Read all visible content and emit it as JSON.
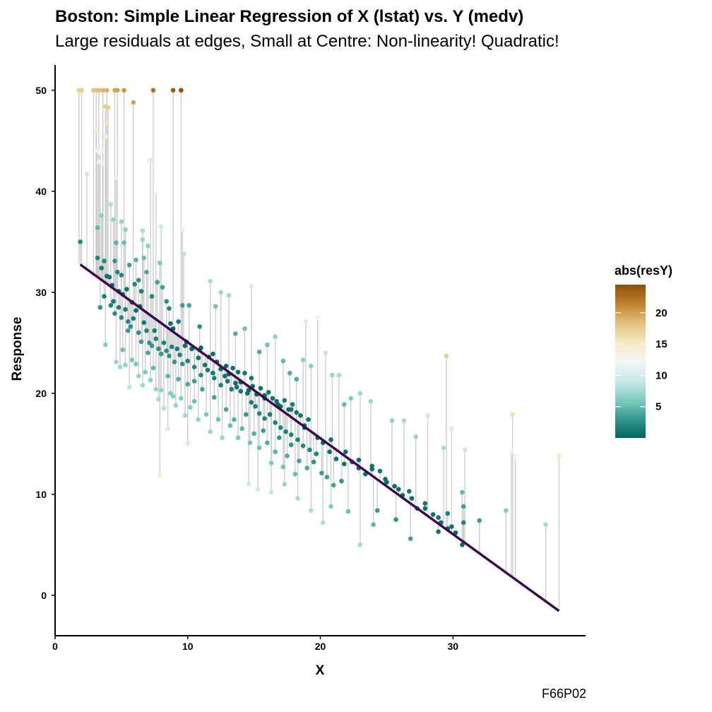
{
  "chart_data": {
    "type": "scatter",
    "title": "Boston: Simple Linear Regression of X (lstat) vs. Y (medv)",
    "subtitle": "Large residuals at edges, Small at Centre: Non-linearity! Quadratic!",
    "caption": "F66P02",
    "xlabel": "X",
    "ylabel": "Response",
    "xlim": [
      0,
      40
    ],
    "ylim": [
      -4,
      52.5
    ],
    "x_ticks": [
      0,
      10,
      20,
      30
    ],
    "y_ticks": [
      0,
      10,
      20,
      30,
      40,
      50
    ],
    "grid": false,
    "regression_line": {
      "intercept": 34.55,
      "slope": -0.95,
      "x_range": [
        1.9,
        38.0
      ],
      "color": "#3d0a4f"
    },
    "residual_segments_color": "#bdbdbd",
    "legend": {
      "title": "abs(resY)",
      "position": "right",
      "ticks": [
        5,
        10,
        15,
        20
      ],
      "range": [
        0.0,
        24.5
      ],
      "colors": [
        "#01665e",
        "#35978f",
        "#80cdc1",
        "#c7eae5",
        "#f5f5f5",
        "#f6e8c3",
        "#dfc27d",
        "#bf812d",
        "#8c510a"
      ]
    },
    "points": [
      [
        1.9,
        35.0
      ],
      [
        1.8,
        50.0
      ],
      [
        2.0,
        50.0
      ],
      [
        2.9,
        50.0
      ],
      [
        3.1,
        50.0
      ],
      [
        3.3,
        50.0
      ],
      [
        3.6,
        50.0
      ],
      [
        3.9,
        50.0
      ],
      [
        4.5,
        50.0
      ],
      [
        4.7,
        50.0
      ],
      [
        5.2,
        50.0
      ],
      [
        7.4,
        50.0
      ],
      [
        8.9,
        50.0
      ],
      [
        9.5,
        50.0
      ],
      [
        3.8,
        48.4
      ],
      [
        4.0,
        48.3
      ],
      [
        5.9,
        48.8
      ],
      [
        3.1,
        46.0
      ],
      [
        3.2,
        44.0
      ],
      [
        3.4,
        43.8
      ],
      [
        3.6,
        44.0
      ],
      [
        3.8,
        45.4
      ],
      [
        3.9,
        46.7
      ],
      [
        3.3,
        42.9
      ],
      [
        3.6,
        42.8
      ],
      [
        7.2,
        43.1
      ],
      [
        2.4,
        41.7
      ],
      [
        4.6,
        41.3
      ],
      [
        7.6,
        39.8
      ],
      [
        4.2,
        38.7
      ],
      [
        4.4,
        37.2
      ],
      [
        3.2,
        36.4
      ],
      [
        3.5,
        37.6
      ],
      [
        5.0,
        37.0
      ],
      [
        5.3,
        36.2
      ],
      [
        6.6,
        36.1
      ],
      [
        8.0,
        36.5
      ],
      [
        9.6,
        36.2
      ],
      [
        9.7,
        33.8
      ],
      [
        3.2,
        33.4
      ],
      [
        3.5,
        32.4
      ],
      [
        3.7,
        33.1
      ],
      [
        3.9,
        31.6
      ],
      [
        4.1,
        31.5
      ],
      [
        4.3,
        30.7
      ],
      [
        4.5,
        33.1
      ],
      [
        4.6,
        34.9
      ],
      [
        4.7,
        32.0
      ],
      [
        4.8,
        30.1
      ],
      [
        5.0,
        31.7
      ],
      [
        5.1,
        29.8
      ],
      [
        5.2,
        34.9
      ],
      [
        5.4,
        30.3
      ],
      [
        5.6,
        32.7
      ],
      [
        5.8,
        29.0
      ],
      [
        6.0,
        30.8
      ],
      [
        6.1,
        33.2
      ],
      [
        6.3,
        31.2
      ],
      [
        6.5,
        30.1
      ],
      [
        6.6,
        35.2
      ],
      [
        6.7,
        33.4
      ],
      [
        6.9,
        32.0
      ],
      [
        7.0,
        34.6
      ],
      [
        7.3,
        29.6
      ],
      [
        7.7,
        31.0
      ],
      [
        7.9,
        32.9
      ],
      [
        8.1,
        30.5
      ],
      [
        8.4,
        29.1
      ],
      [
        8.6,
        28.4
      ],
      [
        8.9,
        26.4
      ],
      [
        9.3,
        27.1
      ],
      [
        9.6,
        28.7
      ],
      [
        10.1,
        28.7
      ],
      [
        10.9,
        26.6
      ],
      [
        3.4,
        28.5
      ],
      [
        3.7,
        29.6
      ],
      [
        4.2,
        28.7
      ],
      [
        4.5,
        27.9
      ],
      [
        4.8,
        28.5
      ],
      [
        5.0,
        27.5
      ],
      [
        5.3,
        28.3
      ],
      [
        5.5,
        27.1
      ],
      [
        5.7,
        26.6
      ],
      [
        5.9,
        27.4
      ],
      [
        6.1,
        28.2
      ],
      [
        6.3,
        26.0
      ],
      [
        6.5,
        25.1
      ],
      [
        6.7,
        27.0
      ],
      [
        6.9,
        26.2
      ],
      [
        7.1,
        25.0
      ],
      [
        7.3,
        24.7
      ],
      [
        7.5,
        26.2
      ],
      [
        7.8,
        24.4
      ],
      [
        8.0,
        23.9
      ],
      [
        8.2,
        25.0
      ],
      [
        8.4,
        24.2
      ],
      [
        8.6,
        23.7
      ],
      [
        8.8,
        24.6
      ],
      [
        9.0,
        23.1
      ],
      [
        9.2,
        24.4
      ],
      [
        9.4,
        23.8
      ],
      [
        9.6,
        22.9
      ],
      [
        9.8,
        24.7
      ],
      [
        10.0,
        23.2
      ],
      [
        10.3,
        24.4
      ],
      [
        10.5,
        22.6
      ],
      [
        10.8,
        23.5
      ],
      [
        11.0,
        24.5
      ],
      [
        11.3,
        22.8
      ],
      [
        11.6,
        23.6
      ],
      [
        11.9,
        22.0
      ],
      [
        12.2,
        23.1
      ],
      [
        12.5,
        22.4
      ],
      [
        12.8,
        21.7
      ],
      [
        13.1,
        21.9
      ],
      [
        13.4,
        22.5
      ],
      [
        13.7,
        20.6
      ],
      [
        14.0,
        21.1
      ],
      [
        14.3,
        22.0
      ],
      [
        14.6,
        20.3
      ],
      [
        14.9,
        20.7
      ],
      [
        15.2,
        19.9
      ],
      [
        15.5,
        20.5
      ],
      [
        15.8,
        19.5
      ],
      [
        16.1,
        20.1
      ],
      [
        16.4,
        19.5
      ],
      [
        16.7,
        19.2
      ],
      [
        17.0,
        18.7
      ],
      [
        17.3,
        19.3
      ],
      [
        17.6,
        18.4
      ],
      [
        17.9,
        18.9
      ],
      [
        18.2,
        18.1
      ],
      [
        18.5,
        17.8
      ],
      [
        18.8,
        16.8
      ],
      [
        19.1,
        17.4
      ],
      [
        3.8,
        24.8
      ],
      [
        4.6,
        23.1
      ],
      [
        4.9,
        22.6
      ],
      [
        5.1,
        24.3
      ],
      [
        5.3,
        22.8
      ],
      [
        5.6,
        20.6
      ],
      [
        5.8,
        23.3
      ],
      [
        6.1,
        22.9
      ],
      [
        6.3,
        21.7
      ],
      [
        6.6,
        20.8
      ],
      [
        6.8,
        22.1
      ],
      [
        7.0,
        24.0
      ],
      [
        7.2,
        21.3
      ],
      [
        7.4,
        22.5
      ],
      [
        7.6,
        20.4
      ],
      [
        7.8,
        19.4
      ],
      [
        8.0,
        20.3
      ],
      [
        8.2,
        18.5
      ],
      [
        8.5,
        21.7
      ],
      [
        8.7,
        20.0
      ],
      [
        8.9,
        19.7
      ],
      [
        9.1,
        18.8
      ],
      [
        9.3,
        21.4
      ],
      [
        9.5,
        19.5
      ],
      [
        9.8,
        17.8
      ],
      [
        10.0,
        20.9
      ],
      [
        10.2,
        18.6
      ],
      [
        10.5,
        19.2
      ],
      [
        10.8,
        17.4
      ],
      [
        11.1,
        20.4
      ],
      [
        11.4,
        17.9
      ],
      [
        11.7,
        16.2
      ],
      [
        12.0,
        19.6
      ],
      [
        12.3,
        17.4
      ],
      [
        12.6,
        15.6
      ],
      [
        12.9,
        18.4
      ],
      [
        13.2,
        16.8
      ],
      [
        13.5,
        17.4
      ],
      [
        13.8,
        15.6
      ],
      [
        14.1,
        16.5
      ],
      [
        14.4,
        17.9
      ],
      [
        14.7,
        15.1
      ],
      [
        15.0,
        16.0
      ],
      [
        15.4,
        14.6
      ],
      [
        15.7,
        16.3
      ],
      [
        16.0,
        15.1
      ],
      [
        16.3,
        13.1
      ],
      [
        16.6,
        14.2
      ],
      [
        16.9,
        15.6
      ],
      [
        17.2,
        12.7
      ],
      [
        17.5,
        13.8
      ],
      [
        17.8,
        14.9
      ],
      [
        18.1,
        12.0
      ],
      [
        18.4,
        13.3
      ],
      [
        19.0,
        12.6
      ],
      [
        19.5,
        13.2
      ],
      [
        20.1,
        12.1
      ],
      [
        20.5,
        11.7
      ],
      [
        21.0,
        10.9
      ],
      [
        21.6,
        11.3
      ],
      [
        10.5,
        21.2
      ],
      [
        11.0,
        21.8
      ],
      [
        11.5,
        22.3
      ],
      [
        12.0,
        21.5
      ],
      [
        12.5,
        20.8
      ],
      [
        13.0,
        21.2
      ],
      [
        13.3,
        20.4
      ],
      [
        13.6,
        21.0
      ],
      [
        14.0,
        20.2
      ],
      [
        14.5,
        20.0
      ],
      [
        14.8,
        19.1
      ],
      [
        15.1,
        18.7
      ],
      [
        15.4,
        18.0
      ],
      [
        15.8,
        17.5
      ],
      [
        16.2,
        17.9
      ],
      [
        16.6,
        17.1
      ],
      [
        17.0,
        16.6
      ],
      [
        17.4,
        16.2
      ],
      [
        17.8,
        15.9
      ],
      [
        18.3,
        15.4
      ],
      [
        18.7,
        14.8
      ],
      [
        19.2,
        14.4
      ],
      [
        19.7,
        14.0
      ],
      [
        20.2,
        15.1
      ],
      [
        20.7,
        14.2
      ],
      [
        21.2,
        13.5
      ],
      [
        21.8,
        13.0
      ],
      [
        22.4,
        13.2
      ],
      [
        22.9,
        12.6
      ],
      [
        23.4,
        12.0
      ],
      [
        23.9,
        12.8
      ],
      [
        24.5,
        12.3
      ],
      [
        25.0,
        11.2
      ],
      [
        25.6,
        10.8
      ],
      [
        26.2,
        9.9
      ],
      [
        26.7,
        10.3
      ],
      [
        27.3,
        8.6
      ],
      [
        27.9,
        9.1
      ],
      [
        28.5,
        8.0
      ],
      [
        29.1,
        7.2
      ],
      [
        29.6,
        6.6
      ],
      [
        30.2,
        6.2
      ],
      [
        30.7,
        5.0
      ],
      [
        4.4,
        29.1
      ],
      [
        5.5,
        26.2
      ],
      [
        6.4,
        28.6
      ],
      [
        7.6,
        25.4
      ],
      [
        8.7,
        26.9
      ],
      [
        9.9,
        25.1
      ],
      [
        10.9,
        24.3
      ],
      [
        11.9,
        23.9
      ],
      [
        12.9,
        22.7
      ],
      [
        13.8,
        22.1
      ],
      [
        14.8,
        21.5
      ],
      [
        15.8,
        19.8
      ],
      [
        16.8,
        18.9
      ],
      [
        17.8,
        18.4
      ],
      [
        18.8,
        16.6
      ],
      [
        19.8,
        15.6
      ],
      [
        20.8,
        15.4
      ],
      [
        21.9,
        14.2
      ],
      [
        22.9,
        13.4
      ],
      [
        23.9,
        12.5
      ],
      [
        24.9,
        11.5
      ],
      [
        25.9,
        10.5
      ],
      [
        26.9,
        9.6
      ],
      [
        27.9,
        8.6
      ],
      [
        28.9,
        7.7
      ],
      [
        29.9,
        6.8
      ],
      [
        30.8,
        7.2
      ],
      [
        32.0,
        7.4
      ],
      [
        11.7,
        31.1
      ],
      [
        12.1,
        28.6
      ],
      [
        12.5,
        30.0
      ],
      [
        13.1,
        29.7
      ],
      [
        13.6,
        25.9
      ],
      [
        14.3,
        26.4
      ],
      [
        14.8,
        30.6
      ],
      [
        15.4,
        24.1
      ],
      [
        16.0,
        24.8
      ],
      [
        16.6,
        25.6
      ],
      [
        17.2,
        23.2
      ],
      [
        17.7,
        22.0
      ],
      [
        18.2,
        21.4
      ],
      [
        18.7,
        23.3
      ],
      [
        19.3,
        22.7
      ],
      [
        19.8,
        27.5
      ],
      [
        20.4,
        24.0
      ],
      [
        20.9,
        21.8
      ],
      [
        21.4,
        21.8
      ],
      [
        21.8,
        18.9
      ],
      [
        22.3,
        19.5
      ],
      [
        23.0,
        20.0
      ],
      [
        23.8,
        19.2
      ],
      [
        25.4,
        17.3
      ],
      [
        26.3,
        17.3
      ],
      [
        27.2,
        15.7
      ],
      [
        28.1,
        17.8
      ],
      [
        29.3,
        14.6
      ],
      [
        29.9,
        16.5
      ],
      [
        30.9,
        14.4
      ],
      [
        34.4,
        14.3
      ],
      [
        34.7,
        13.8
      ],
      [
        14.6,
        11.0
      ],
      [
        15.3,
        10.5
      ],
      [
        16.3,
        10.2
      ],
      [
        17.3,
        11.0
      ],
      [
        18.3,
        9.6
      ],
      [
        19.3,
        8.4
      ],
      [
        20.2,
        7.2
      ],
      [
        20.8,
        8.8
      ],
      [
        22.1,
        8.3
      ],
      [
        23.0,
        5.0
      ],
      [
        24.0,
        7.0
      ],
      [
        24.3,
        8.4
      ],
      [
        25.7,
        7.5
      ],
      [
        26.8,
        5.6
      ],
      [
        28.9,
        6.3
      ],
      [
        29.6,
        8.1
      ],
      [
        30.7,
        10.2
      ],
      [
        30.8,
        8.8
      ],
      [
        34.0,
        8.4
      ],
      [
        37.0,
        7.0
      ],
      [
        38.0,
        13.8
      ],
      [
        34.5,
        17.9
      ],
      [
        29.5,
        23.7
      ],
      [
        7.9,
        11.9
      ],
      [
        8.5,
        16.5
      ],
      [
        10.0,
        15.0
      ],
      [
        18.9,
        27.1
      ]
    ]
  }
}
